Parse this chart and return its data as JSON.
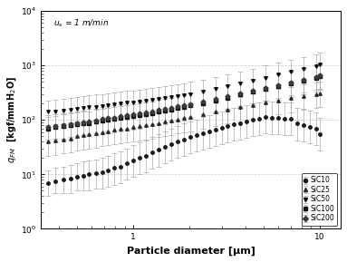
{
  "title_annotation": "u_s = 1 m/min",
  "xlabel": "Particle diameter [μm]",
  "xlim": [
    0.32,
    13
  ],
  "ylim": [
    1,
    10000
  ],
  "yticks": [
    1,
    10,
    100,
    1000,
    10000
  ],
  "ytick_labels": [
    "10⁰",
    "10¹",
    "10²",
    "10³",
    "10⁴"
  ],
  "xticks": [
    1,
    10
  ],
  "xtick_labels": [
    "1",
    "10"
  ],
  "legend_labels": [
    "SiC10",
    "SiC25",
    "SiC50",
    "SiC100",
    "SiC200"
  ],
  "series": {
    "SiC10": {
      "x": [
        0.35,
        0.38,
        0.42,
        0.46,
        0.5,
        0.54,
        0.58,
        0.63,
        0.68,
        0.73,
        0.79,
        0.85,
        0.92,
        1.0,
        1.08,
        1.17,
        1.27,
        1.37,
        1.48,
        1.6,
        1.73,
        1.87,
        2.02,
        2.18,
        2.36,
        2.55,
        2.76,
        2.98,
        3.22,
        3.48,
        3.76,
        4.07,
        4.4,
        4.75,
        5.14,
        5.55,
        6.0,
        6.49,
        7.01,
        7.58,
        8.19,
        8.86,
        9.57,
        10.0
      ],
      "y": [
        7,
        7.5,
        8,
        8.5,
        9,
        9.5,
        10,
        10.5,
        11,
        12,
        13,
        14,
        16,
        18,
        20,
        22,
        25,
        28,
        32,
        36,
        40,
        44,
        48,
        52,
        57,
        62,
        67,
        72,
        77,
        83,
        88,
        94,
        100,
        106,
        112,
        110,
        108,
        106,
        104,
        85,
        80,
        75,
        70,
        55
      ],
      "yerr_lo": [
        3,
        3,
        3.5,
        4,
        4,
        4.5,
        5,
        5,
        5.5,
        6,
        6.5,
        7,
        8,
        9,
        10,
        11,
        12.5,
        14,
        16,
        18,
        20,
        22,
        24,
        26,
        28.5,
        31,
        33.5,
        36,
        38.5,
        41.5,
        44,
        47,
        50,
        53,
        56,
        55,
        54,
        53,
        52,
        42.5,
        40,
        37.5,
        35,
        27.5
      ],
      "yerr_hi": [
        5,
        5.5,
        6,
        6.5,
        7,
        7.5,
        8,
        8.5,
        9,
        10,
        11,
        12,
        14,
        16,
        18,
        20,
        23,
        26,
        30,
        34,
        38,
        42,
        46,
        50,
        55,
        60,
        65,
        70,
        75,
        81,
        86,
        92,
        98,
        104,
        110,
        108,
        106,
        104,
        102,
        83,
        78,
        73,
        68,
        53
      ],
      "marker": "o",
      "color": "#1a1a1a"
    },
    "SiC25": {
      "x": [
        0.35,
        0.38,
        0.42,
        0.46,
        0.5,
        0.54,
        0.58,
        0.63,
        0.68,
        0.73,
        0.79,
        0.85,
        0.92,
        1.0,
        1.08,
        1.17,
        1.27,
        1.37,
        1.48,
        1.6,
        1.73,
        1.87,
        2.02,
        2.36,
        2.76,
        3.22,
        3.76,
        4.4,
        5.14,
        6.0,
        7.01,
        8.19,
        9.57,
        10.0
      ],
      "y": [
        40,
        42,
        44,
        46,
        50,
        52,
        55,
        57,
        60,
        62,
        65,
        68,
        70,
        73,
        76,
        80,
        84,
        88,
        92,
        97,
        102,
        108,
        114,
        126,
        140,
        155,
        172,
        190,
        210,
        230,
        252,
        278,
        300,
        310
      ],
      "yerr_lo": [
        18,
        19,
        20,
        21,
        23,
        24,
        25,
        26,
        27,
        28,
        29,
        31,
        32,
        33,
        34,
        36,
        38,
        40,
        42,
        44,
        46,
        49,
        52,
        57,
        63,
        70,
        78,
        86,
        95,
        104,
        114,
        126,
        136,
        140
      ],
      "yerr_hi": [
        25,
        26,
        27,
        28,
        31,
        32,
        34,
        35,
        37,
        38,
        40,
        42,
        43,
        45,
        47,
        49,
        52,
        54,
        57,
        60,
        63,
        67,
        71,
        78,
        87,
        96,
        107,
        118,
        130,
        143,
        156,
        172,
        186,
        192
      ],
      "marker": "^",
      "color": "#2a2a2a"
    },
    "SiC50": {
      "x": [
        0.35,
        0.38,
        0.42,
        0.46,
        0.5,
        0.54,
        0.58,
        0.63,
        0.68,
        0.73,
        0.79,
        0.85,
        0.92,
        1.0,
        1.08,
        1.17,
        1.27,
        1.37,
        1.48,
        1.6,
        1.73,
        1.87,
        2.02,
        2.36,
        2.76,
        3.22,
        3.76,
        4.4,
        5.14,
        6.0,
        7.01,
        8.19,
        9.57,
        10.0
      ],
      "y": [
        140,
        145,
        150,
        155,
        160,
        165,
        170,
        176,
        182,
        188,
        194,
        200,
        206,
        212,
        218,
        225,
        232,
        240,
        250,
        260,
        272,
        285,
        300,
        330,
        370,
        415,
        470,
        530,
        600,
        680,
        770,
        870,
        980,
        1050
      ],
      "yerr_lo": [
        60,
        62,
        64,
        66,
        68,
        71,
        73,
        76,
        78,
        81,
        83,
        86,
        89,
        91,
        94,
        97,
        100,
        103,
        108,
        112,
        117,
        123,
        129,
        142,
        159,
        179,
        202,
        228,
        258,
        292,
        331,
        374,
        421,
        452
      ],
      "yerr_hi": [
        90,
        93,
        96,
        100,
        103,
        107,
        110,
        114,
        118,
        122,
        126,
        130,
        134,
        138,
        142,
        146,
        151,
        156,
        163,
        170,
        178,
        187,
        196,
        216,
        242,
        272,
        308,
        348,
        394,
        447,
        507,
        573,
        646,
        693
      ],
      "marker": "v",
      "color": "#0a0a0a"
    },
    "SiC100": {
      "x": [
        0.35,
        0.38,
        0.42,
        0.46,
        0.5,
        0.54,
        0.58,
        0.63,
        0.68,
        0.73,
        0.79,
        0.85,
        0.92,
        1.0,
        1.08,
        1.17,
        1.27,
        1.37,
        1.48,
        1.6,
        1.73,
        1.87,
        2.02,
        2.36,
        2.76,
        3.22,
        3.76,
        4.4,
        5.14,
        6.0,
        7.01,
        8.19,
        9.57,
        10.0
      ],
      "y": [
        70,
        73,
        76,
        79,
        82,
        85,
        88,
        92,
        96,
        100,
        104,
        108,
        112,
        116,
        122,
        128,
        134,
        141,
        148,
        156,
        165,
        174,
        184,
        205,
        230,
        258,
        290,
        326,
        366,
        412,
        464,
        522,
        588,
        630
      ],
      "yerr_lo": [
        30,
        31,
        32,
        34,
        35,
        36,
        38,
        40,
        41,
        43,
        45,
        46,
        48,
        50,
        52,
        55,
        58,
        61,
        64,
        67,
        71,
        75,
        79,
        88,
        99,
        111,
        125,
        140,
        157,
        177,
        199,
        224,
        253,
        271
      ],
      "yerr_hi": [
        45,
        47,
        49,
        51,
        53,
        55,
        57,
        60,
        62,
        65,
        67,
        70,
        73,
        75,
        79,
        83,
        87,
        92,
        96,
        101,
        107,
        113,
        120,
        134,
        150,
        168,
        189,
        212,
        238,
        268,
        302,
        340,
        382,
        410
      ],
      "marker": "s",
      "color": "#101010"
    },
    "SiC200": {
      "x": [
        0.35,
        0.38,
        0.42,
        0.46,
        0.5,
        0.54,
        0.58,
        0.63,
        0.68,
        0.73,
        0.79,
        0.85,
        0.92,
        1.0,
        1.08,
        1.17,
        1.27,
        1.37,
        1.48,
        1.6,
        1.73,
        1.87,
        2.02,
        2.36,
        2.76,
        3.22,
        3.76,
        4.4,
        5.14,
        6.0,
        7.01,
        8.19,
        9.57,
        10.0
      ],
      "y": [
        75,
        78,
        81,
        84,
        88,
        91,
        95,
        99,
        103,
        107,
        111,
        116,
        121,
        126,
        132,
        138,
        145,
        152,
        160,
        168,
        177,
        187,
        197,
        220,
        246,
        276,
        310,
        348,
        390,
        438,
        492,
        552,
        620,
        664
      ],
      "yerr_lo": [
        32,
        33,
        35,
        36,
        38,
        39,
        41,
        43,
        44,
        46,
        48,
        50,
        52,
        54,
        57,
        59,
        62,
        65,
        69,
        72,
        76,
        80,
        85,
        95,
        106,
        119,
        133,
        150,
        168,
        188,
        212,
        237,
        267,
        286
      ],
      "yerr_hi": [
        48,
        50,
        52,
        54,
        57,
        59,
        62,
        64,
        67,
        70,
        72,
        75,
        79,
        82,
        86,
        90,
        94,
        99,
        104,
        110,
        115,
        122,
        128,
        143,
        160,
        180,
        202,
        227,
        254,
        286,
        321,
        360,
        404,
        433
      ],
      "marker": "D",
      "color": "#3a3a3a"
    }
  },
  "background_color": "#ffffff",
  "grid_color": "#aaaaaa"
}
